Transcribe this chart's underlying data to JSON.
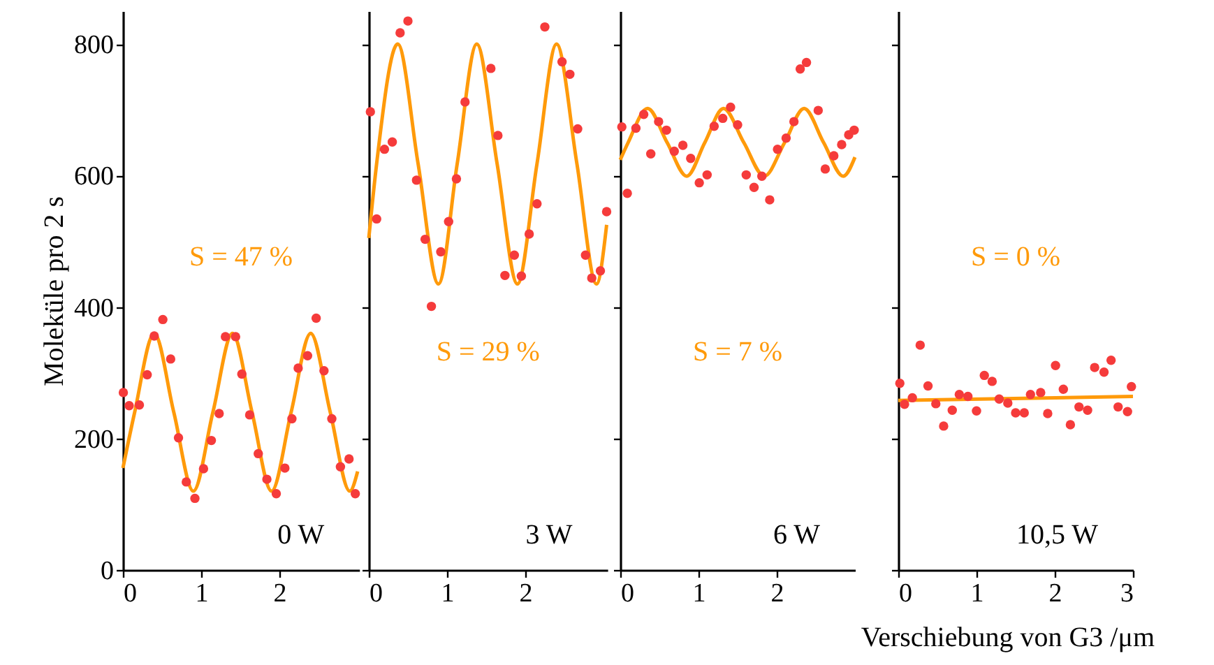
{
  "chart_data": [
    {
      "type": "scatter",
      "ylabel": "Moleküle pro 2 s",
      "xlim": [
        0,
        3.02
      ],
      "xticks": [
        0,
        1,
        2
      ],
      "ylim": [
        0,
        850
      ],
      "yticks": [
        0,
        200,
        400,
        600,
        800
      ],
      "annotations": [
        "S = 47 %",
        "0 W"
      ],
      "series": [
        {
          "type": "scatter",
          "marker": "circle",
          "color": "#f53b3b",
          "x": [
            0.005,
            0.08,
            0.21,
            0.31,
            0.4,
            0.51,
            0.61,
            0.71,
            0.81,
            0.92,
            1.03,
            1.13,
            1.23,
            1.31,
            1.44,
            1.52,
            1.62,
            1.73,
            1.84,
            1.96,
            2.07,
            2.16,
            2.24,
            2.36,
            2.47,
            2.57,
            2.67,
            2.78,
            2.89,
            2.97
          ],
          "values": [
            270,
            250,
            251,
            297,
            356,
            381,
            321,
            201,
            134,
            109,
            154,
            197,
            238,
            355,
            355,
            298,
            236,
            177,
            138,
            116,
            155,
            230,
            307,
            326,
            383,
            303,
            230,
            157,
            169,
            116
          ]
        },
        {
          "type": "line",
          "color": "#ff9a0a",
          "x": [
            0,
            0.15,
            0.4,
            0.65,
            0.9,
            1.15,
            1.4,
            1.65,
            1.9,
            2.15,
            2.4,
            2.65,
            2.9,
            3.0
          ],
          "values": [
            155,
            240,
            360,
            240,
            120,
            240,
            360,
            240,
            120,
            240,
            360,
            240,
            120,
            150
          ]
        }
      ]
    },
    {
      "type": "scatter",
      "xlim": [
        0,
        3.05
      ],
      "xticks": [
        0,
        1,
        2
      ],
      "ylim": [
        0,
        850
      ],
      "yticks": [
        0,
        200,
        400,
        600,
        800
      ],
      "tick_labels": "x",
      "annotations": [
        "S = 29 %",
        "3 W"
      ],
      "series": [
        {
          "type": "scatter",
          "marker": "circle",
          "color": "#f53b3b",
          "x": [
            0.02,
            0.1,
            0.2,
            0.3,
            0.4,
            0.5,
            0.61,
            0.72,
            0.8,
            0.92,
            1.02,
            1.12,
            1.23,
            1.56,
            1.65,
            1.74,
            1.86,
            1.95,
            2.05,
            2.15,
            2.25,
            2.47,
            2.57,
            2.67,
            2.77,
            2.85,
            2.96,
            3.04
          ],
          "values": [
            697,
            534,
            640,
            651,
            817,
            835,
            593,
            503,
            401,
            484,
            530,
            595,
            712,
            763,
            661,
            448,
            479,
            447,
            511,
            557,
            826,
            773,
            754,
            671,
            479,
            444,
            455,
            545
          ]
        },
        {
          "type": "line",
          "color": "#ff9a0a",
          "x": [
            0,
            0.1,
            0.37,
            0.63,
            0.89,
            1.13,
            1.38,
            1.64,
            1.9,
            2.15,
            2.4,
            2.66,
            2.91,
            3.04
          ],
          "values": [
            505,
            618,
            800,
            618,
            435,
            618,
            800,
            618,
            435,
            618,
            800,
            618,
            435,
            525
          ]
        }
      ]
    },
    {
      "type": "scatter",
      "xlim": [
        0,
        3.0
      ],
      "xticks": [
        0,
        1,
        2
      ],
      "ylim": [
        0,
        850
      ],
      "yticks": [
        0,
        200,
        400,
        600,
        800
      ],
      "tick_labels": "x",
      "annotations": [
        "S = 7 %",
        "6 W"
      ],
      "series": [
        {
          "type": "scatter",
          "marker": "circle",
          "color": "#f53b3b",
          "x": [
            0.02,
            0.09,
            0.2,
            0.3,
            0.39,
            0.49,
            0.59,
            0.69,
            0.8,
            0.9,
            1.01,
            1.11,
            1.2,
            1.31,
            1.41,
            1.5,
            1.61,
            1.71,
            1.81,
            1.91,
            2.01,
            2.12,
            2.22,
            2.3,
            2.38,
            2.53,
            2.62,
            2.73,
            2.83,
            2.92,
            2.99
          ],
          "values": [
            674,
            573,
            672,
            693,
            633,
            682,
            669,
            637,
            646,
            626,
            589,
            601,
            675,
            687,
            704,
            677,
            601,
            582,
            599,
            563,
            640,
            657,
            682,
            762,
            772,
            699,
            610,
            630,
            647,
            662,
            669
          ]
        },
        {
          "type": "line",
          "color": "#ff9a0a",
          "x": [
            0,
            0.1,
            0.35,
            0.6,
            0.85,
            1.08,
            1.32,
            1.58,
            1.84,
            2.1,
            2.35,
            2.6,
            2.85,
            3.0
          ],
          "values": [
            624,
            650,
            702,
            650,
            599,
            650,
            702,
            650,
            599,
            650,
            702,
            650,
            599,
            628
          ]
        }
      ]
    },
    {
      "type": "scatter",
      "xlabel": "Verschiebung von G3 /μm",
      "xlim": [
        0,
        3.0
      ],
      "xticks": [
        0,
        1,
        2,
        3
      ],
      "ylim": [
        0,
        850
      ],
      "yticks": [
        0,
        200,
        400,
        600,
        800
      ],
      "tick_labels": "x",
      "annotations": [
        "S = 0 %",
        "10,5 W"
      ],
      "series": [
        {
          "type": "scatter",
          "marker": "circle",
          "color": "#f53b3b",
          "x": [
            0.02,
            0.08,
            0.18,
            0.28,
            0.38,
            0.48,
            0.58,
            0.69,
            0.78,
            0.89,
            1.0,
            1.1,
            1.2,
            1.29,
            1.4,
            1.5,
            1.61,
            1.69,
            1.82,
            1.91,
            2.01,
            2.11,
            2.2,
            2.31,
            2.42,
            2.51,
            2.63,
            2.72,
            2.81,
            2.93,
            2.98
          ],
          "values": [
            284,
            252,
            262,
            342,
            280,
            253,
            219,
            243,
            267,
            264,
            242,
            296,
            287,
            260,
            254,
            239,
            239,
            267,
            270,
            238,
            311,
            275,
            221,
            248,
            243,
            308,
            301,
            319,
            248,
            241,
            279
          ]
        },
        {
          "type": "line",
          "color": "#ff9a0a",
          "x": [
            0,
            3.0
          ],
          "values": [
            258,
            264
          ]
        }
      ]
    }
  ]
}
